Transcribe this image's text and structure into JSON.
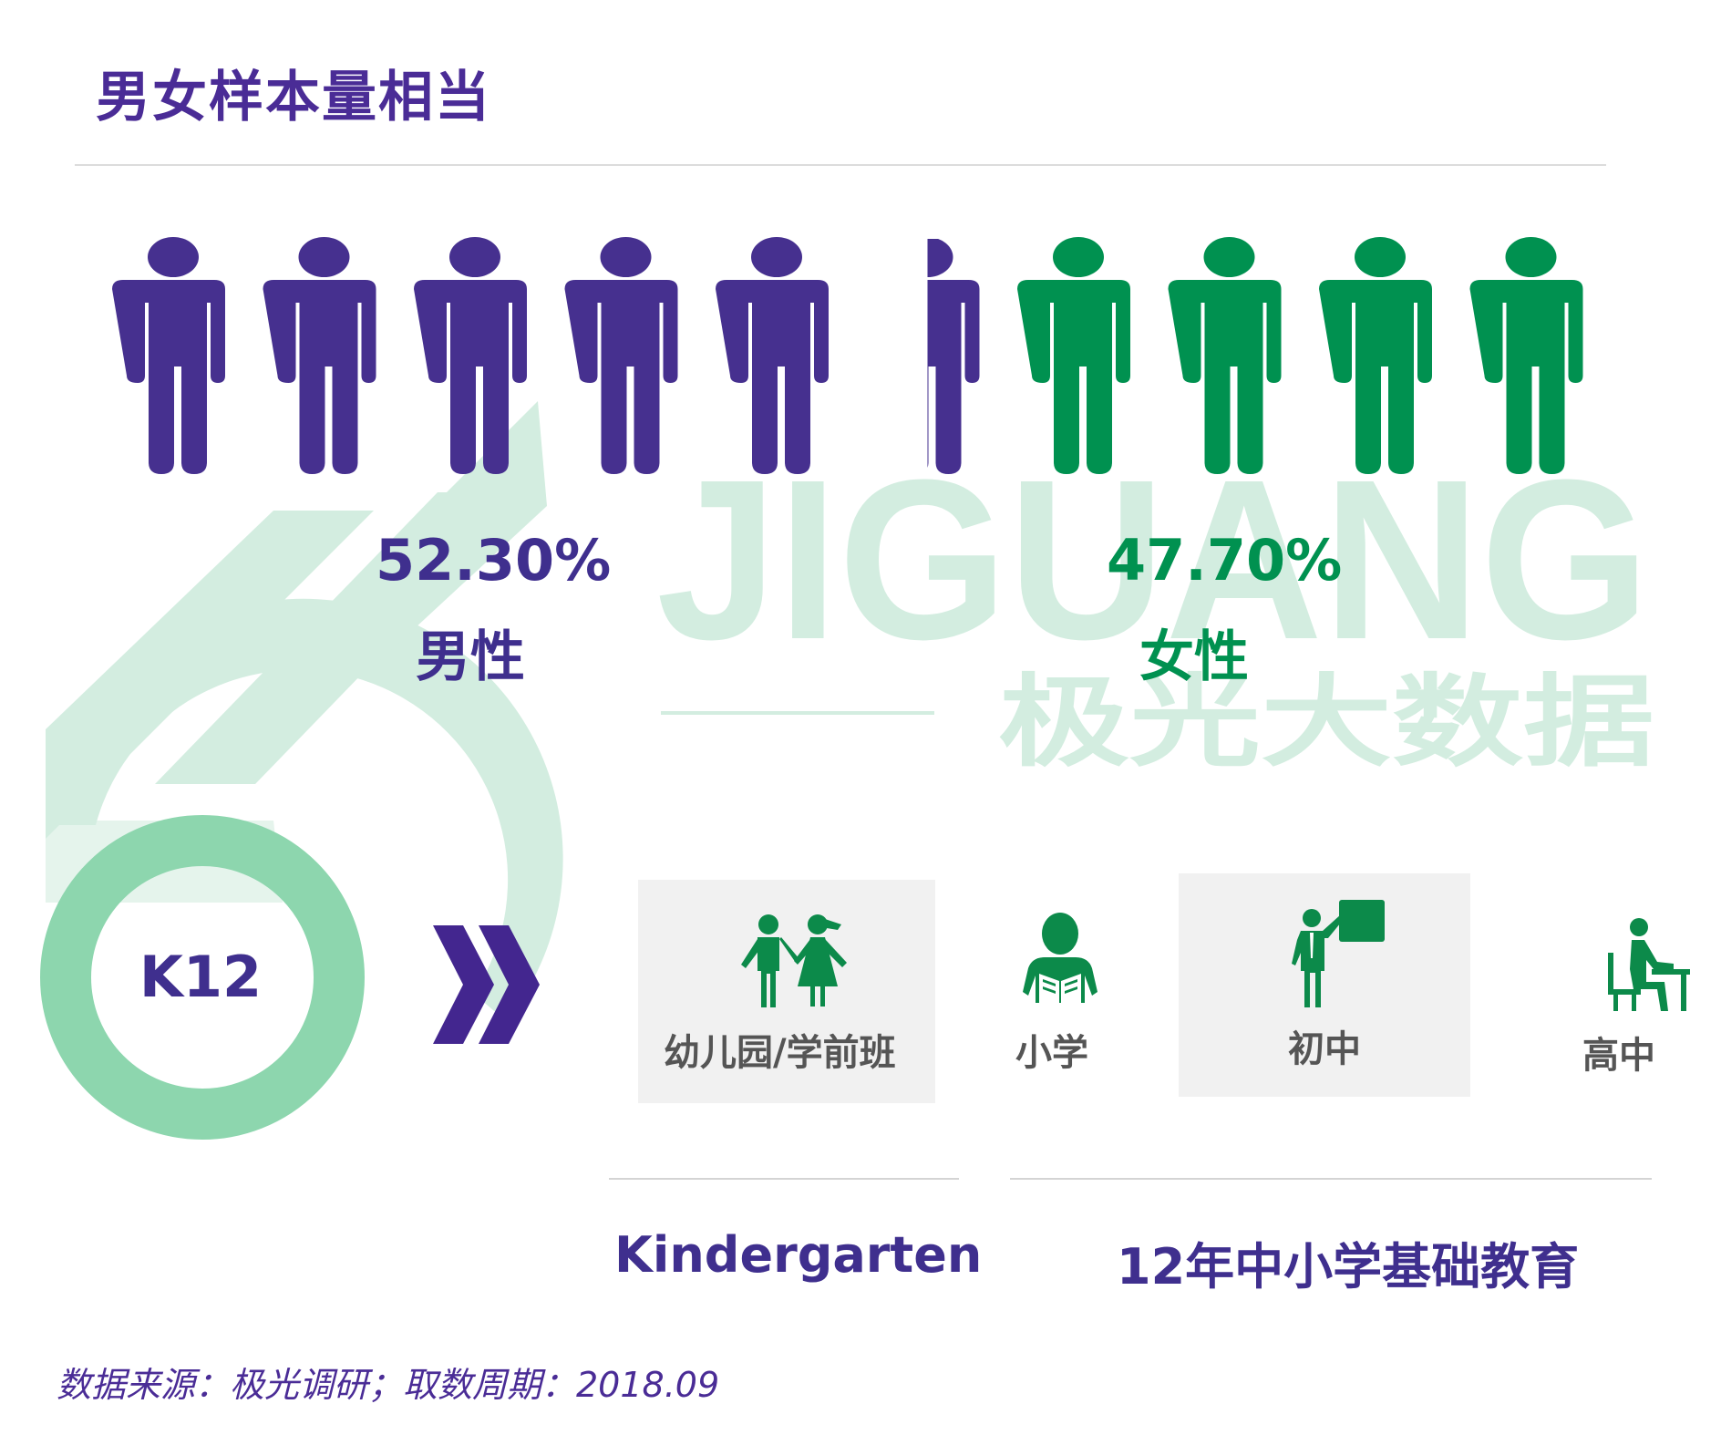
{
  "title": "男女样本量相当",
  "chart_data": {
    "type": "pictograph",
    "icon_count": 10,
    "categories": [
      "男性",
      "女性"
    ],
    "values": [
      52.3,
      47.7
    ],
    "value_labels": [
      "52.30%",
      "47.70%"
    ],
    "unit": "%",
    "colors": {
      "男性": "#46308f",
      "女性": "#009150"
    }
  },
  "watermark": {
    "brand": "JIGUANG",
    "brand_cn": "极光大数据"
  },
  "k12": {
    "label": "K12"
  },
  "stages": [
    {
      "label": "幼儿园/学前班",
      "icon": "children-holding-hands-icon"
    },
    {
      "label": "小学",
      "icon": "child-reading-book-icon"
    },
    {
      "label": "初中",
      "icon": "student-at-blackboard-icon"
    },
    {
      "label": "高中",
      "icon": "student-at-desk-icon"
    }
  ],
  "groups": [
    {
      "label": "Kindergarten"
    },
    {
      "label": "12年中小学基础教育"
    }
  ],
  "source": "数据来源：极光调研；取数周期：2018.09"
}
